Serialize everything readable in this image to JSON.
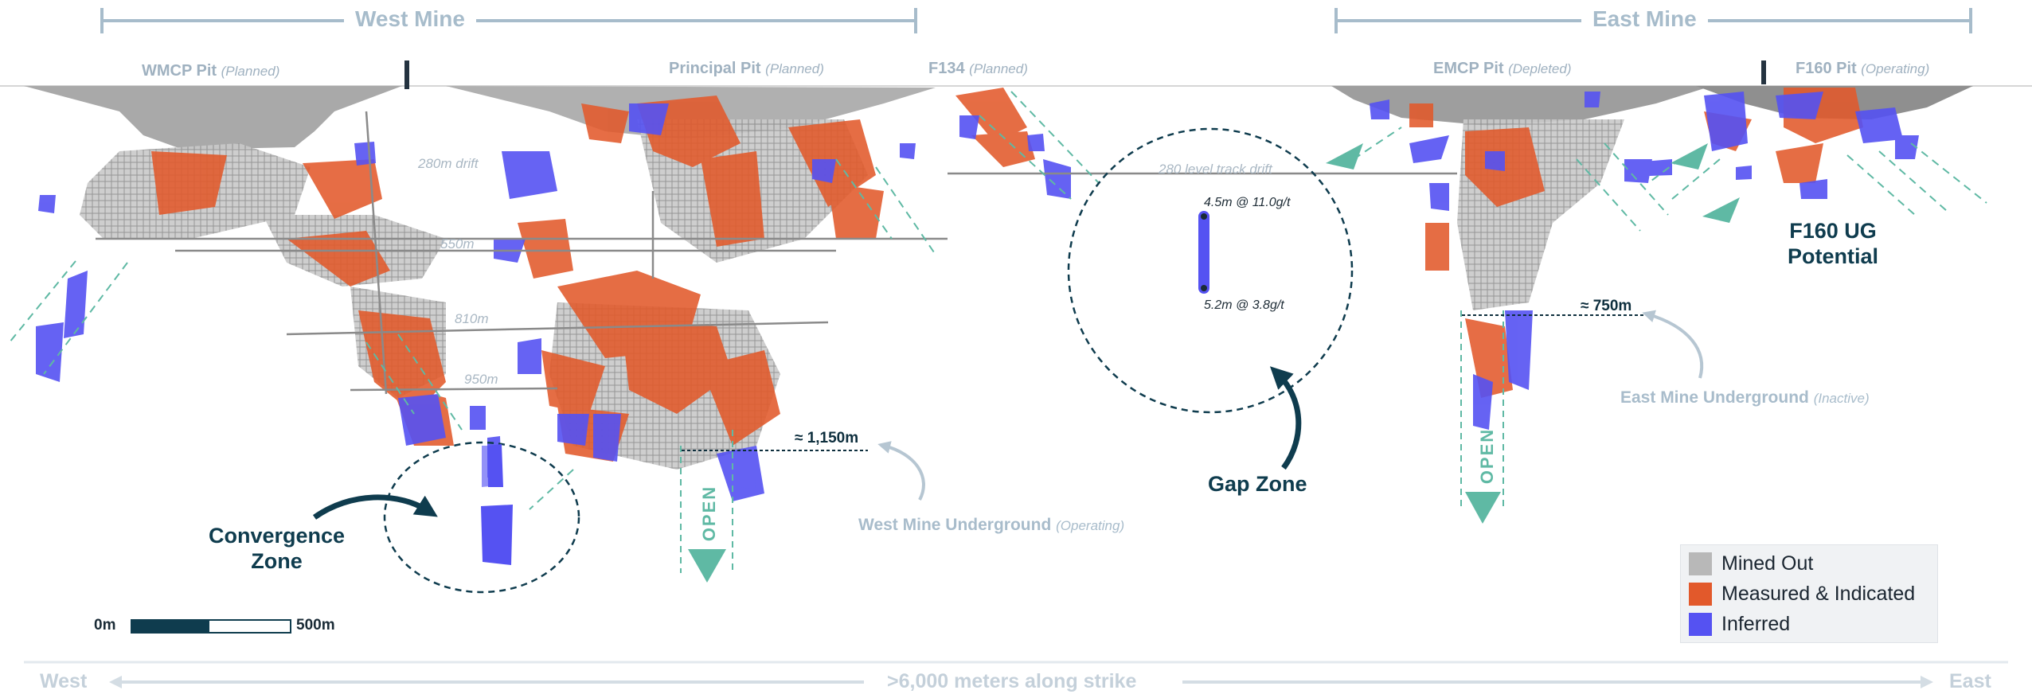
{
  "header": {
    "west_mine": "West Mine",
    "east_mine": "East Mine"
  },
  "pits": [
    {
      "name": "WMCP Pit",
      "status": "(Planned)"
    },
    {
      "name": "Principal Pit",
      "status": "(Planned)"
    },
    {
      "name": "F134",
      "status": "(Planned)"
    },
    {
      "name": "EMCP Pit",
      "status": "(Depleted)"
    },
    {
      "name": "F160 Pit",
      "status": "(Operating)"
    }
  ],
  "levels": {
    "drift_280": "280m drift",
    "level_550": "550m",
    "level_810": "810m",
    "level_950": "950m",
    "track_drift_280": "280 level track drift"
  },
  "depths": {
    "west": "≈ 1,150m",
    "east": "≈ 750m"
  },
  "open_label": "OPEN",
  "underground": {
    "west": {
      "name": "West Mine Underground",
      "status": "(Operating)"
    },
    "east": {
      "name": "East Mine Underground",
      "status": "(Inactive)"
    }
  },
  "zones": {
    "convergence_line1": "Convergence",
    "convergence_line2": "Zone",
    "gap": "Gap Zone",
    "f160_line1": "F160 UG",
    "f160_line2": "Potential"
  },
  "gap_intercepts": {
    "upper": "4.5m @ 11.0g/t",
    "lower": "5.2m @ 3.8g/t"
  },
  "scale": {
    "start": "0m",
    "end": "500m"
  },
  "strike": {
    "west": "West",
    "east": "East",
    "label": ">6,000 meters along strike"
  },
  "legend": [
    {
      "label": "Mined Out",
      "color": "#b8b8b8"
    },
    {
      "label": "Measured & Indicated",
      "color": "#e2592b"
    },
    {
      "label": "Inferred",
      "color": "#5552f2"
    }
  ],
  "colors": {
    "mined_out": "#b8b8b8",
    "measured_indicated": "#e2592b",
    "inferred": "#5552f2",
    "teal": "#5fb9a4",
    "navy": "#0f3c4e",
    "bracket": "#a7bccb"
  }
}
